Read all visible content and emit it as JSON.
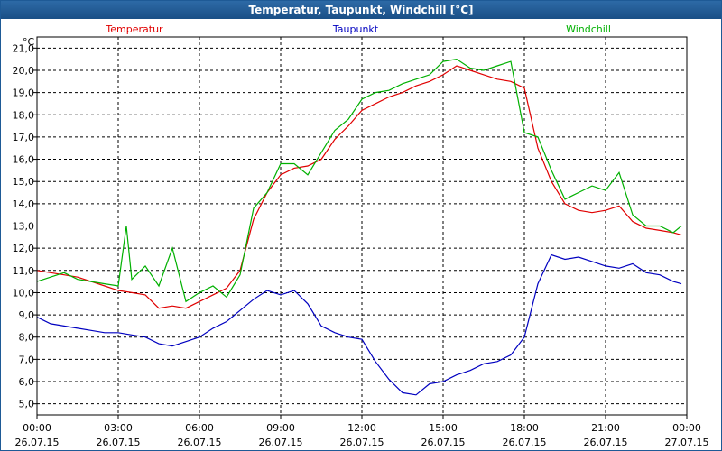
{
  "window": {
    "title": "Temperatur, Taupunkt, Windchill [°C]"
  },
  "colors": {
    "temperatur": "#e00000",
    "taupunkt": "#0000c0",
    "windchill": "#00b000",
    "title_bg": "#1e5a96"
  },
  "chart_data": {
    "type": "line",
    "title": "Temperatur, Taupunkt, Windchill [°C]",
    "ylabel": "°C",
    "ylim": [
      4.5,
      21.5
    ],
    "xlim": [
      0,
      24
    ],
    "grid": true,
    "legend_position": "top",
    "y_ticks": [
      "5,0",
      "6,0",
      "7,0",
      "8,0",
      "9,0",
      "10,0",
      "11,0",
      "12,0",
      "13,0",
      "14,0",
      "15,0",
      "16,0",
      "17,0",
      "18,0",
      "19,0",
      "20,0",
      "21,0"
    ],
    "x_ticks": [
      {
        "time": "00:00",
        "date": "26.07.15"
      },
      {
        "time": "03:00",
        "date": "26.07.15"
      },
      {
        "time": "06:00",
        "date": "26.07.15"
      },
      {
        "time": "09:00",
        "date": "26.07.15"
      },
      {
        "time": "12:00",
        "date": "26.07.15"
      },
      {
        "time": "15:00",
        "date": "26.07.15"
      },
      {
        "time": "18:00",
        "date": "26.07.15"
      },
      {
        "time": "21:00",
        "date": "26.07.15"
      },
      {
        "time": "00:00",
        "date": "27.07.15"
      }
    ],
    "series": [
      {
        "name": "Temperatur",
        "color": "#e00000",
        "x": [
          0,
          0.5,
          1,
          1.5,
          2,
          2.5,
          3,
          3.5,
          4,
          4.5,
          5,
          5.5,
          6,
          6.5,
          7,
          7.5,
          8,
          8.5,
          9,
          9.5,
          10,
          10.5,
          11,
          11.5,
          12,
          12.5,
          13,
          13.5,
          14,
          14.5,
          15,
          15.5,
          16,
          16.5,
          17,
          17.5,
          18,
          18.5,
          19,
          19.5,
          20,
          20.5,
          21,
          21.5,
          22,
          22.5,
          23,
          23.5,
          23.8
        ],
        "values": [
          11.0,
          10.9,
          10.8,
          10.7,
          10.5,
          10.3,
          10.1,
          10.0,
          9.9,
          9.3,
          9.4,
          9.3,
          9.6,
          9.9,
          10.2,
          11.0,
          13.3,
          14.5,
          15.3,
          15.6,
          15.7,
          16.0,
          16.9,
          17.5,
          18.2,
          18.5,
          18.8,
          19.0,
          19.3,
          19.5,
          19.8,
          20.2,
          20.0,
          19.8,
          19.6,
          19.5,
          19.2,
          16.5,
          15.0,
          14.0,
          13.7,
          13.6,
          13.7,
          13.9,
          13.2,
          12.9,
          12.8,
          12.7,
          12.6
        ]
      },
      {
        "name": "Taupunkt",
        "color": "#0000c0",
        "x": [
          0,
          0.5,
          1,
          1.5,
          2,
          2.5,
          3,
          3.5,
          4,
          4.5,
          5,
          5.5,
          6,
          6.5,
          7,
          7.5,
          8,
          8.5,
          9,
          9.5,
          10,
          10.5,
          11,
          11.5,
          12,
          12.5,
          13,
          13.5,
          14,
          14.5,
          15,
          15.5,
          16,
          16.5,
          17,
          17.5,
          18,
          18.5,
          19,
          19.5,
          20,
          20.5,
          21,
          21.5,
          22,
          22.5,
          23,
          23.5,
          23.8
        ],
        "values": [
          8.9,
          8.6,
          8.5,
          8.4,
          8.3,
          8.2,
          8.2,
          8.1,
          8.0,
          7.7,
          7.6,
          7.8,
          8.0,
          8.4,
          8.7,
          9.2,
          9.7,
          10.1,
          9.9,
          10.1,
          9.5,
          8.5,
          8.2,
          8.0,
          7.9,
          6.9,
          6.1,
          5.5,
          5.4,
          5.9,
          6.0,
          6.3,
          6.5,
          6.8,
          6.9,
          7.2,
          8.0,
          10.4,
          11.7,
          11.5,
          11.6,
          11.4,
          11.2,
          11.1,
          11.3,
          10.9,
          10.8,
          10.5,
          10.4
        ]
      },
      {
        "name": "Windchill",
        "color": "#00b000",
        "x": [
          0,
          0.5,
          1,
          1.5,
          2,
          2.5,
          3,
          3.3,
          3.5,
          4,
          4.5,
          5,
          5.5,
          6,
          6.5,
          7,
          7.5,
          8,
          8.5,
          9,
          9.5,
          10,
          10.5,
          11,
          11.5,
          12,
          12.5,
          13,
          13.5,
          14,
          14.5,
          15,
          15.5,
          16,
          16.5,
          17,
          17.5,
          18,
          18.5,
          19,
          19.5,
          20,
          20.5,
          21,
          21.5,
          22,
          22.5,
          23,
          23.5,
          23.8
        ],
        "values": [
          10.5,
          10.7,
          10.9,
          10.6,
          10.5,
          10.4,
          10.3,
          13.0,
          10.6,
          11.2,
          10.3,
          12.0,
          9.6,
          10.0,
          10.3,
          9.8,
          10.8,
          13.8,
          14.5,
          15.8,
          15.8,
          15.3,
          16.3,
          17.3,
          17.8,
          18.7,
          19.0,
          19.1,
          19.4,
          19.6,
          19.8,
          20.4,
          20.5,
          20.1,
          20.0,
          20.2,
          20.4,
          17.2,
          17.0,
          15.5,
          14.2,
          14.5,
          14.8,
          14.6,
          15.4,
          13.5,
          13.0,
          13.0,
          12.7,
          13.0
        ]
      }
    ]
  }
}
